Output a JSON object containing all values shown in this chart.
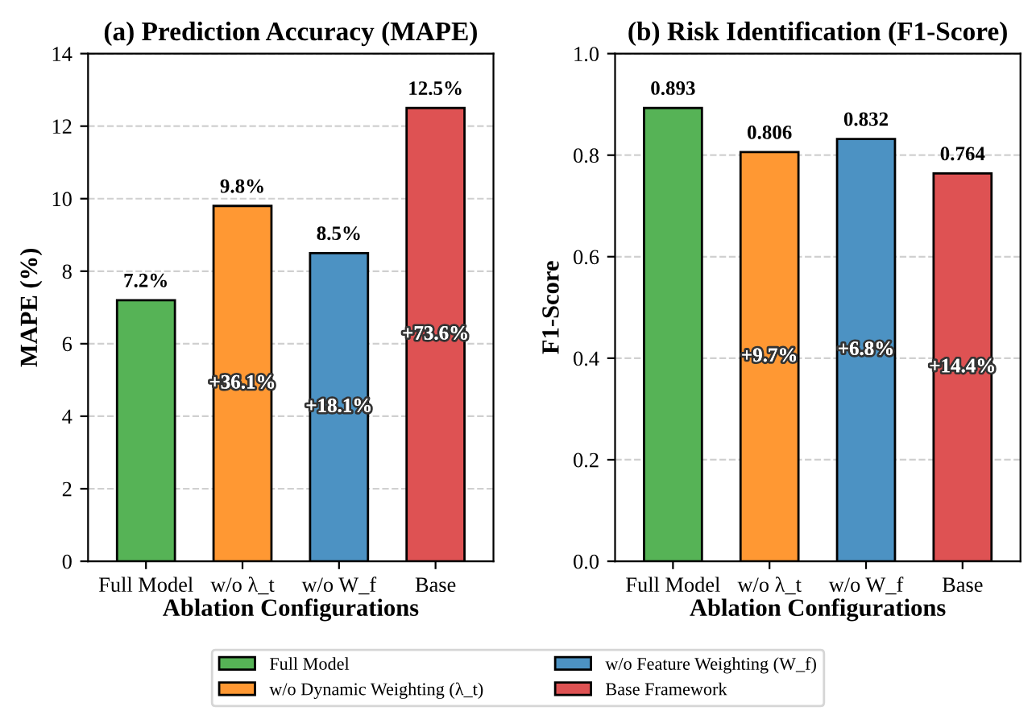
{
  "chart_data": [
    {
      "type": "bar",
      "title": "(a) Prediction Accuracy (MAPE)",
      "xlabel": "Ablation Configurations",
      "ylabel": "MAPE (%)",
      "categories": [
        "Full Model",
        "w/o λ_t",
        "w/o W_f",
        "Base"
      ],
      "series": [
        {
          "name": "Full Model",
          "color": "#56b356",
          "values": [
            7.2,
            null,
            null,
            null
          ],
          "value_labels": [
            "7.2%",
            null,
            null,
            null
          ]
        },
        {
          "name": "w/o Dynamic Weighting (λ_t)",
          "color": "#ff9833",
          "values": [
            null,
            9.8,
            null,
            null
          ],
          "value_labels": [
            null,
            "9.8%",
            null,
            null
          ]
        },
        {
          "name": "w/o Feature Weighting (W_f)",
          "color": "#4c92c3",
          "values": [
            null,
            null,
            8.5,
            null
          ],
          "value_labels": [
            null,
            null,
            "8.5%",
            null
          ]
        },
        {
          "name": "Base Framework",
          "color": "#de5253",
          "values": [
            null,
            null,
            null,
            12.5
          ],
          "value_labels": [
            null,
            null,
            null,
            "12.5%"
          ]
        }
      ],
      "annotations": [
        "+36.1%",
        "+18.1%",
        "+73.6%"
      ],
      "ylim": [
        0,
        14
      ],
      "yticks": [
        0,
        2,
        4,
        6,
        8,
        10,
        12,
        14
      ],
      "grid": "y",
      "legend": "bottom"
    },
    {
      "type": "bar",
      "title": "(b) Risk Identification (F1-Score)",
      "xlabel": "Ablation Configurations",
      "ylabel": "F1-Score",
      "categories": [
        "Full Model",
        "w/o λ_t",
        "w/o W_f",
        "Base"
      ],
      "series": [
        {
          "color": "#56b356",
          "values": [
            0.893,
            null,
            null,
            null
          ]
        },
        {
          "color": "#ff9833",
          "values": [
            null,
            0.806,
            null,
            null
          ]
        },
        {
          "color": "#4c92c3",
          "values": [
            null,
            null,
            0.832,
            null
          ]
        },
        {
          "color": "#de5253",
          "values": [
            null,
            null,
            null,
            0.764
          ]
        }
      ],
      "data_labels": true,
      "annotations": [
        "+9.7%",
        "+6.8%",
        "+14.4%"
      ],
      "ylim": [
        0,
        1.0
      ],
      "yticks": [
        {
          "value": 0,
          "label": "0.0"
        },
        {
          "value": 0.2,
          "label": "0.2"
        },
        {
          "value": 0.4,
          "label": "0.4"
        },
        {
          "value": 0.6,
          "label": "0.6"
        },
        {
          "value": 0.8,
          "label": "0.8"
        },
        {
          "value": 1.0,
          "label": "1.0"
        }
      ],
      "grid": "y"
    }
  ]
}
